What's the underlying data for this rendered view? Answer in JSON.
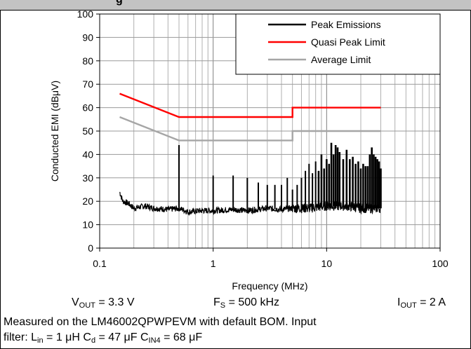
{
  "title_fragment": "g",
  "chart_data": {
    "type": "line",
    "xlabel": "Frequency (MHz)",
    "ylabel": "Conducted EMI  (dBμV)",
    "x_scale": "log",
    "xlim": [
      0.1,
      100
    ],
    "ylim": [
      0,
      100
    ],
    "x_ticks": [
      "0.1",
      "1",
      "10",
      "100"
    ],
    "y_ticks": [
      "0",
      "10",
      "20",
      "30",
      "40",
      "50",
      "60",
      "70",
      "80",
      "90",
      "100"
    ],
    "grid": true,
    "legend_position": "top-right",
    "series": [
      {
        "name": "Peak Emissions",
        "color": "#000000",
        "baseline": [
          [
            0.15,
            24
          ],
          [
            0.16,
            20
          ],
          [
            0.18,
            19
          ],
          [
            0.2,
            17
          ],
          [
            0.25,
            18
          ],
          [
            0.3,
            17
          ],
          [
            0.4,
            16.5
          ],
          [
            0.5,
            17
          ],
          [
            0.6,
            15.5
          ],
          [
            0.8,
            16
          ],
          [
            1,
            16
          ],
          [
            1.5,
            16.5
          ],
          [
            2,
            16
          ],
          [
            3,
            17
          ],
          [
            4,
            16.5
          ],
          [
            5,
            17
          ],
          [
            7,
            17
          ],
          [
            10,
            18
          ],
          [
            15,
            18
          ],
          [
            20,
            17
          ],
          [
            30,
            17
          ]
        ],
        "spikes": [
          [
            0.5,
            44
          ],
          [
            1.0,
            31
          ],
          [
            1.5,
            31
          ],
          [
            2.0,
            30
          ],
          [
            2.5,
            28
          ],
          [
            3.0,
            27
          ],
          [
            3.5,
            27
          ],
          [
            4.0,
            27
          ],
          [
            4.5,
            30
          ],
          [
            5.0,
            25
          ],
          [
            5.5,
            27
          ],
          [
            6.0,
            30
          ],
          [
            6.5,
            33
          ],
          [
            7.0,
            36
          ],
          [
            7.5,
            32
          ],
          [
            8.0,
            37
          ],
          [
            8.5,
            33
          ],
          [
            9.0,
            40
          ],
          [
            9.5,
            34
          ],
          [
            10.0,
            38
          ],
          [
            10.5,
            36
          ],
          [
            11.0,
            45
          ],
          [
            11.5,
            40
          ],
          [
            12.0,
            44
          ],
          [
            12.5,
            43
          ],
          [
            13.0,
            41
          ],
          [
            14.0,
            38
          ],
          [
            15.0,
            42
          ],
          [
            16.0,
            38
          ],
          [
            17.0,
            39
          ],
          [
            18.0,
            36
          ],
          [
            19.0,
            37
          ],
          [
            20.0,
            34
          ],
          [
            21.0,
            36
          ],
          [
            22.0,
            35
          ],
          [
            23.0,
            35
          ],
          [
            24.0,
            40
          ],
          [
            25.0,
            43
          ],
          [
            26.0,
            40
          ],
          [
            27.0,
            39
          ],
          [
            28.0,
            38
          ],
          [
            29.0,
            37
          ],
          [
            30.0,
            34
          ]
        ]
      },
      {
        "name": "Quasi Peak Limit",
        "color": "#ff0000",
        "points": [
          [
            0.15,
            66
          ],
          [
            0.5,
            56
          ],
          [
            5,
            56
          ],
          [
            5,
            60
          ],
          [
            30,
            60
          ]
        ]
      },
      {
        "name": "Average Limit",
        "color": "#a6a6a6",
        "points": [
          [
            0.15,
            56
          ],
          [
            0.5,
            46
          ],
          [
            5,
            46
          ],
          [
            5,
            50
          ],
          [
            30,
            50
          ]
        ]
      }
    ]
  },
  "conditions": {
    "vout_main": "V",
    "vout_sub": "OUT",
    "vout_value": " = 3.3 V",
    "fs_main": "F",
    "fs_sub": "S",
    "fs_value": " = 500 kHz",
    "iout_main": "I",
    "iout_sub": "OUT",
    "iout_value": " = 2 A"
  },
  "caption": {
    "line1": "Measured on the LM46002QPWPEVM with default BOM. Input",
    "line2_prefix": "filter: L",
    "lin_sub": "in",
    "lin_value": " = 1 μH C",
    "cd_sub": "d",
    "cd_value": " = 47 μF C",
    "cin_sub": "IN4",
    "cin_value": " = 68 μF"
  }
}
